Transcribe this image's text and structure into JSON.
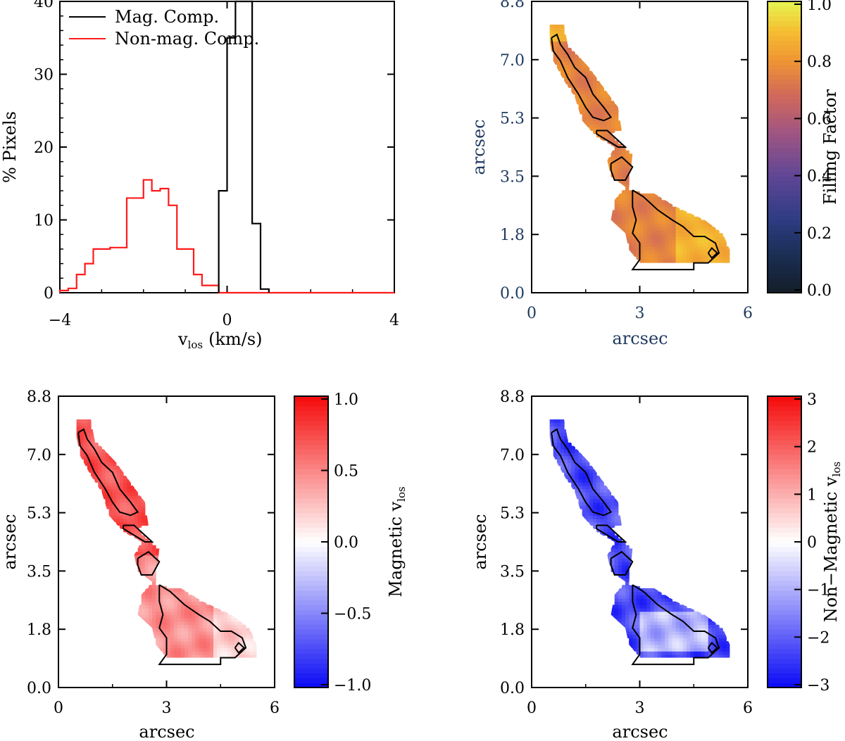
{
  "chart_data": [
    {
      "type": "line",
      "name": "histogram",
      "xlabel": "v",
      "xlabel_sub": "los",
      "xlabel_unit": "(km/s)",
      "ylabel": "% Pixels",
      "xlim": [
        -4,
        4
      ],
      "ylim": [
        0,
        40
      ],
      "xticks": [
        "−4",
        "0",
        "4"
      ],
      "yticks": [
        "0",
        "10",
        "20",
        "30",
        "40"
      ],
      "legend_position": "top-left",
      "series": [
        {
          "name": "Mag. Comp.",
          "color": "#000000",
          "bin_edges": [
            -0.2,
            0.0,
            0.2,
            0.4,
            0.6,
            0.8,
            1.0
          ],
          "values": [
            14,
            35,
            40,
            40,
            9.5,
            0.5
          ]
        },
        {
          "name": "Non-mag. Comp.",
          "color": "#ff1a1a",
          "bin_edges": [
            -4.0,
            -3.8,
            -3.6,
            -3.4,
            -3.2,
            -3.0,
            -2.8,
            -2.6,
            -2.4,
            -2.2,
            -2.0,
            -1.8,
            -1.6,
            -1.4,
            -1.2,
            -1.0,
            -0.8,
            -0.6,
            -0.4,
            -0.2,
            4.0
          ],
          "values": [
            0.3,
            0.6,
            2.5,
            4,
            6,
            6,
            6.2,
            6.2,
            13,
            13,
            15.5,
            14,
            14.3,
            12,
            6,
            6,
            2.5,
            1,
            1,
            0
          ]
        }
      ]
    },
    {
      "type": "heatmap",
      "name": "filling-factor",
      "xlabel": "arcsec",
      "ylabel": "arcsec",
      "xlim": [
        0,
        6
      ],
      "ylim": [
        0,
        8.8
      ],
      "xticks": [
        "0",
        "3",
        "6"
      ],
      "yticks": [
        "0.0",
        "1.8",
        "3.5",
        "5.3",
        "7.0",
        "8.8"
      ],
      "colorbar_label": "Filling Factor",
      "colorbar_ticks": [
        "0.0",
        "0.2",
        "0.4",
        "0.6",
        "0.8",
        "1.0"
      ],
      "clim": [
        0,
        1
      ],
      "typical_value": 0.75
    },
    {
      "type": "heatmap",
      "name": "magnetic-vlos",
      "xlabel": "arcsec",
      "ylabel": "arcsec",
      "xlim": [
        0,
        6
      ],
      "ylim": [
        0,
        8.8
      ],
      "xticks": [
        "0",
        "3",
        "6"
      ],
      "yticks": [
        "0.0",
        "1.8",
        "3.5",
        "5.3",
        "7.0",
        "8.8"
      ],
      "colorbar_label": "Magnetic v",
      "colorbar_label_sub": "los",
      "colorbar_ticks": [
        "−1.0",
        "−0.5",
        "0.0",
        "0.5",
        "1.0"
      ],
      "clim": [
        -1,
        1
      ],
      "typical_value": 0.45
    },
    {
      "type": "heatmap",
      "name": "non-magnetic-vlos",
      "xlabel": "arcsec",
      "ylabel": "arcsec",
      "xlim": [
        0,
        6
      ],
      "ylim": [
        0,
        8.8
      ],
      "xticks": [
        "0",
        "3",
        "6"
      ],
      "yticks": [
        "0.0",
        "1.8",
        "3.5",
        "5.3",
        "7.0",
        "8.8"
      ],
      "colorbar_label": "Non−Magnetic v",
      "colorbar_label_sub": "los",
      "colorbar_ticks": [
        "−3",
        "−2",
        "−1",
        "0",
        "1",
        "2",
        "3"
      ],
      "clim": [
        -3,
        3
      ],
      "typical_value": -2.2
    }
  ],
  "map_region": {
    "mask_polygon_arcsec": [
      [
        0.5,
        8.1
      ],
      [
        0.9,
        8.1
      ],
      [
        1.0,
        7.5
      ],
      [
        1.6,
        6.8
      ],
      [
        2.0,
        6.2
      ],
      [
        2.4,
        5.6
      ],
      [
        2.5,
        4.9
      ],
      [
        2.2,
        4.8
      ],
      [
        2.8,
        4.2
      ],
      [
        2.7,
        3.1
      ],
      [
        3.4,
        3.0
      ],
      [
        4.0,
        2.6
      ],
      [
        4.8,
        2.2
      ],
      [
        5.3,
        1.8
      ],
      [
        5.5,
        1.3
      ],
      [
        5.5,
        0.9
      ],
      [
        4.8,
        0.9
      ],
      [
        4.6,
        0.9
      ],
      [
        3.0,
        0.9
      ],
      [
        2.7,
        1.3
      ],
      [
        2.6,
        1.8
      ],
      [
        2.2,
        2.2
      ],
      [
        2.3,
        2.8
      ],
      [
        2.6,
        3.2
      ],
      [
        2.2,
        3.5
      ],
      [
        2.1,
        4.0
      ],
      [
        2.3,
        4.4
      ],
      [
        1.8,
        4.7
      ],
      [
        1.4,
        5.2
      ],
      [
        1.2,
        5.9
      ],
      [
        0.9,
        6.4
      ],
      [
        0.6,
        7.0
      ],
      [
        0.5,
        7.6
      ]
    ],
    "contours_arcsec": [
      [
        [
          0.55,
          7.7
        ],
        [
          0.7,
          7.8
        ],
        [
          0.8,
          7.5
        ],
        [
          1.0,
          7.2
        ],
        [
          1.2,
          6.8
        ],
        [
          1.5,
          6.5
        ],
        [
          1.7,
          6.0
        ],
        [
          2.0,
          5.6
        ],
        [
          2.2,
          5.3
        ],
        [
          2.0,
          5.2
        ],
        [
          1.7,
          5.3
        ],
        [
          1.5,
          5.6
        ],
        [
          1.3,
          6.0
        ],
        [
          1.0,
          6.5
        ],
        [
          0.8,
          7.0
        ],
        [
          0.6,
          7.3
        ],
        [
          0.55,
          7.7
        ]
      ],
      [
        [
          1.8,
          4.9
        ],
        [
          2.1,
          4.9
        ],
        [
          2.4,
          4.6
        ],
        [
          2.6,
          4.4
        ],
        [
          2.4,
          4.4
        ],
        [
          2.1,
          4.6
        ],
        [
          1.8,
          4.8
        ],
        [
          1.8,
          4.9
        ]
      ],
      [
        [
          2.2,
          3.9
        ],
        [
          2.5,
          4.1
        ],
        [
          2.8,
          3.8
        ],
        [
          2.6,
          3.4
        ],
        [
          2.3,
          3.4
        ],
        [
          2.2,
          3.7
        ],
        [
          2.2,
          3.9
        ]
      ],
      [
        [
          2.8,
          3.1
        ],
        [
          3.1,
          2.9
        ],
        [
          3.5,
          2.5
        ],
        [
          3.9,
          2.2
        ],
        [
          4.2,
          2.0
        ],
        [
          4.5,
          1.7
        ],
        [
          4.8,
          1.7
        ],
        [
          5.1,
          1.5
        ],
        [
          5.2,
          1.2
        ],
        [
          4.9,
          0.9
        ],
        [
          4.5,
          0.9
        ],
        [
          4.5,
          0.7
        ],
        [
          2.8,
          0.7
        ],
        [
          3.0,
          1.0
        ],
        [
          3.0,
          1.5
        ],
        [
          2.8,
          1.8
        ],
        [
          2.9,
          2.2
        ],
        [
          2.8,
          2.6
        ],
        [
          2.8,
          3.1
        ]
      ],
      [
        [
          4.9,
          1.2
        ],
        [
          5.0,
          1.35
        ],
        [
          5.15,
          1.2
        ],
        [
          5.0,
          1.05
        ],
        [
          4.9,
          1.2
        ]
      ]
    ]
  }
}
